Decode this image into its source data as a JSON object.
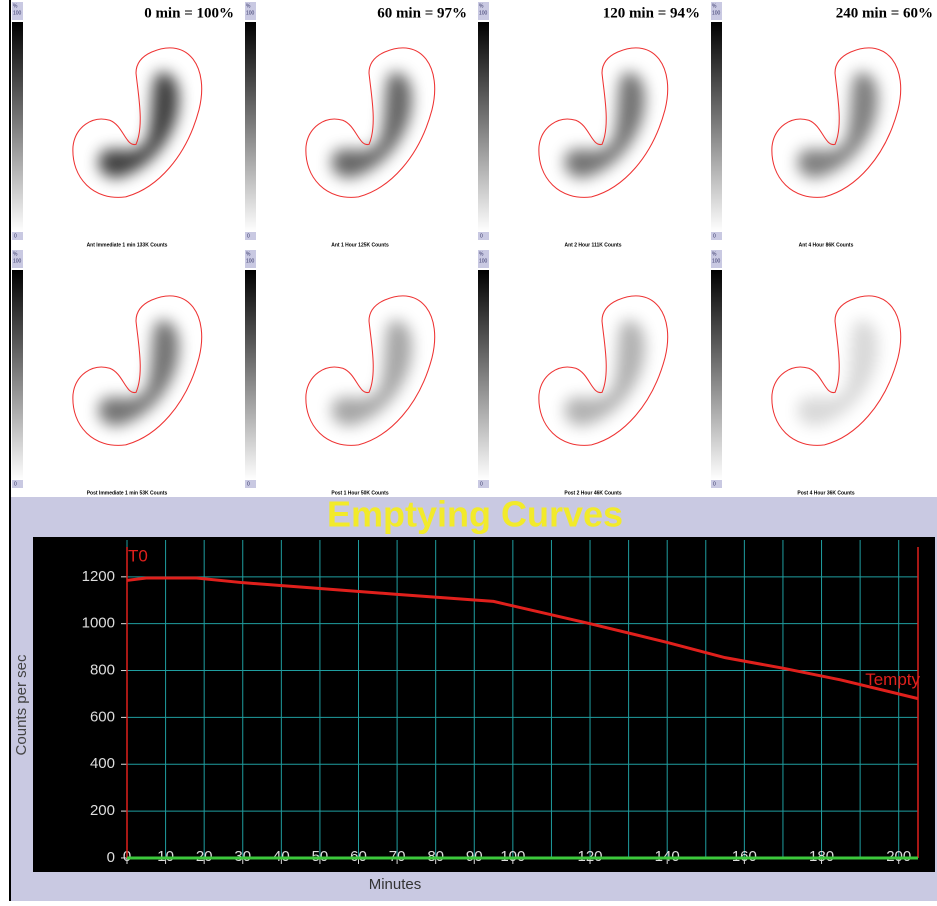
{
  "panels": [
    {
      "title": "0 min = 100%",
      "caption": "Ant Immediate 1 min 133K Counts"
    },
    {
      "title": "60 min = 97%",
      "caption": "Ant 1 Hour 125K Counts"
    },
    {
      "title": "120 min = 94%",
      "caption": "Ant 2 Hour 111K Counts"
    },
    {
      "title": "240 min = 60%",
      "caption": "Ant 4 Hour 86K Counts"
    },
    {
      "caption": "Post Immediate 1 min 53K Counts"
    },
    {
      "caption": "Post 1 Hour 50K Counts"
    },
    {
      "caption": "Post 2 Hour 46K Counts"
    },
    {
      "caption": "Post 4 Hour 36K Counts"
    }
  ],
  "colorbar": {
    "unit": "%",
    "max": "100",
    "min": "0"
  },
  "chart_data": {
    "type": "line",
    "title": "Emptying Curves",
    "x_label": "Minutes",
    "y_label": "Counts per sec",
    "xlim": [
      0,
      205
    ],
    "ylim": [
      -60,
      1370
    ],
    "xticks": [
      0,
      10,
      20,
      30,
      40,
      50,
      60,
      70,
      80,
      90,
      100,
      120,
      140,
      160,
      180,
      200
    ],
    "xminor": [
      110,
      130,
      150,
      170,
      190
    ],
    "yticks": [
      0,
      200,
      400,
      600,
      800,
      1000,
      1200
    ],
    "grid": true,
    "markers": [
      {
        "label": "T0",
        "x": 0
      },
      {
        "label": "Tempty",
        "x": 205
      }
    ],
    "series": [
      {
        "color": "#e0201c",
        "x": [
          0,
          5,
          18,
          30,
          50,
          70,
          95,
          120,
          140,
          155,
          170,
          185,
          205
        ],
        "values": [
          1185,
          1195,
          1195,
          1175,
          1150,
          1125,
          1095,
          1000,
          920,
          855,
          810,
          760,
          680
        ]
      },
      {
        "color": "#3cc83c",
        "x": [
          0,
          205
        ],
        "values": [
          0,
          0
        ]
      }
    ]
  }
}
